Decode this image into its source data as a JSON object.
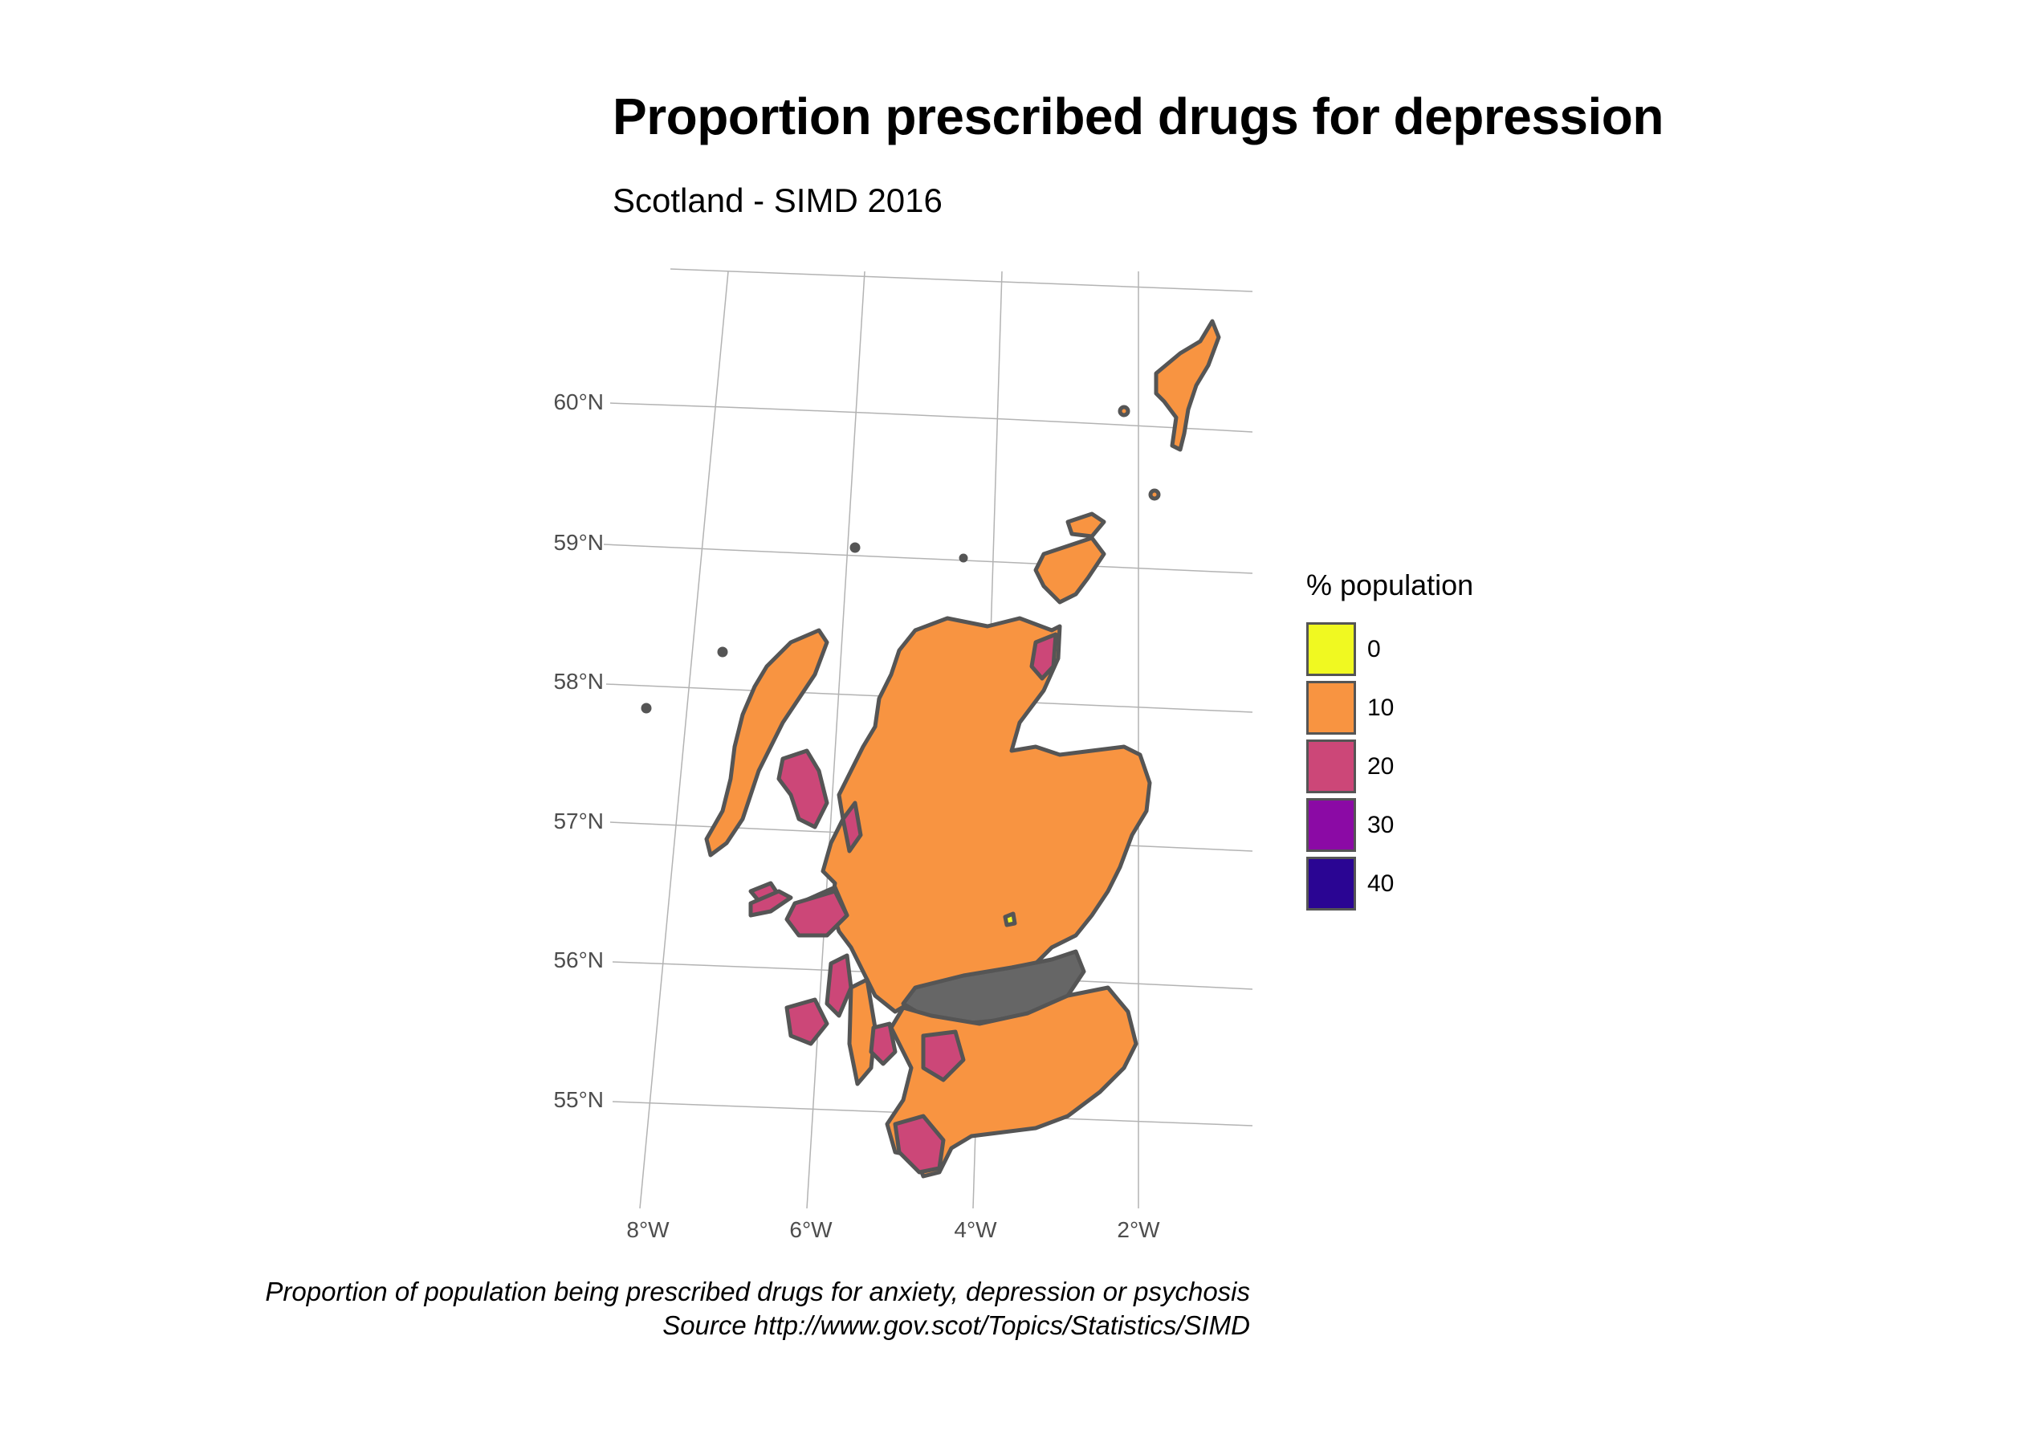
{
  "title": "Proportion prescribed drugs for depression",
  "subtitle": "Scotland  - SIMD 2016",
  "map": {
    "lat_labels": [
      "60°N",
      "59°N",
      "58°N",
      "57°N",
      "56°N",
      "55°N"
    ],
    "lon_labels": [
      "8°W",
      "6°W",
      "4°W",
      "2°W"
    ],
    "fill_dominant": "#F89441",
    "border_color": "#555555",
    "gridline_color": "#B3B3B3"
  },
  "legend": {
    "title": "% population",
    "items": [
      {
        "label": "0",
        "color": "#F0F921"
      },
      {
        "label": "10",
        "color": "#F89441"
      },
      {
        "label": "20",
        "color": "#CC4778"
      },
      {
        "label": "30",
        "color": "#8B0AA5"
      },
      {
        "label": "40",
        "color": "#2A0593"
      }
    ]
  },
  "caption": {
    "line1": "Proportion of population being prescribed drugs for anxiety, depression or psychosis",
    "line2": "Source http://www.gov.scot/Topics/Statistics/SIMD"
  }
}
